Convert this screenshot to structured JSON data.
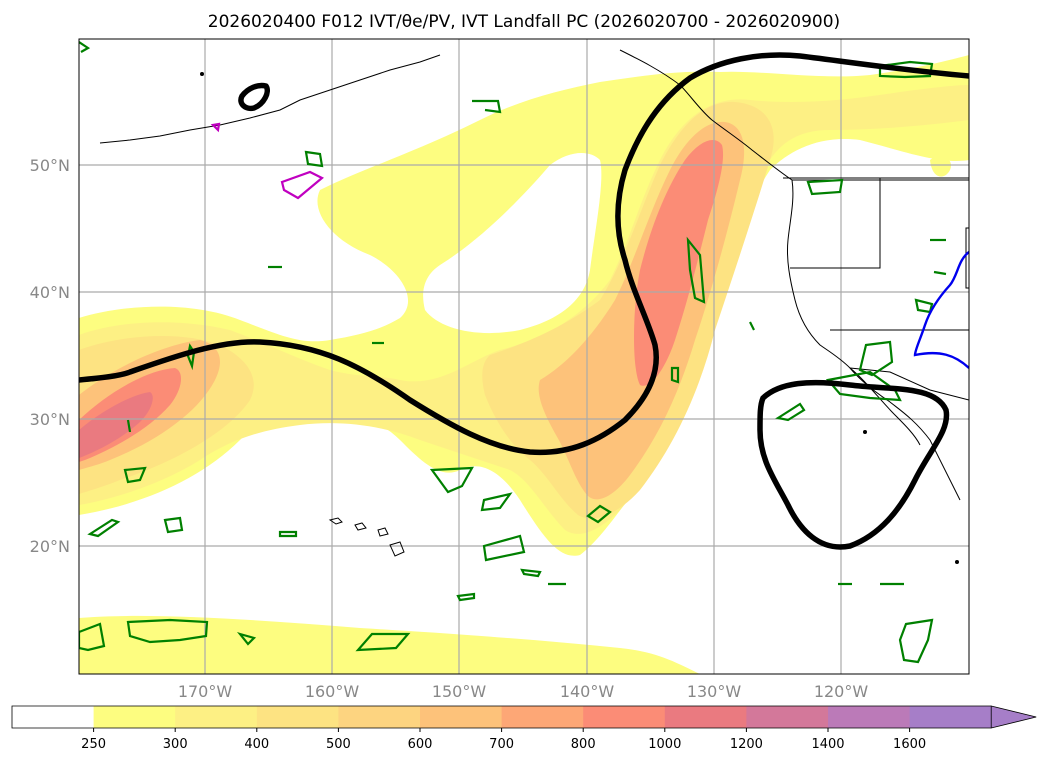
{
  "title": "2026020400 F012 IVT/θe/PV, IVT Landfall PC (2026020700 - 2026020900)",
  "lat_labels": [
    "50°N",
    "40°N",
    "30°N",
    "20°N"
  ],
  "lon_labels": [
    "170°W",
    "160°W",
    "150°W",
    "140°W",
    "130°W",
    "120°W"
  ],
  "colorbar": {
    "ticks": [
      "250",
      "300",
      "400",
      "500",
      "600",
      "700",
      "800",
      "1000",
      "1200",
      "1400",
      "1600"
    ],
    "colors": [
      "#ffffff",
      "#fdfd80",
      "#fdf084",
      "#fde382",
      "#fdd480",
      "#fdc27a",
      "#fda776",
      "#fb8c76",
      "#ea7a80",
      "#d3789a",
      "#bb7ab8",
      "#a67ec8"
    ]
  },
  "map": {
    "lon_range": [
      -180,
      -110
    ],
    "lat_range": [
      10,
      60
    ],
    "fill_colors": {
      "level1": "#fdfd80",
      "level2": "#fdf084",
      "level3": "#fde382",
      "level4": "#fdc27a",
      "level5": "#fb8c76",
      "level6": "#ea7a80"
    },
    "contour_colors": {
      "theta_e": "#000000",
      "pv": "#008000",
      "pv_alt": "#c000c0",
      "blue": "#0000ee"
    }
  }
}
